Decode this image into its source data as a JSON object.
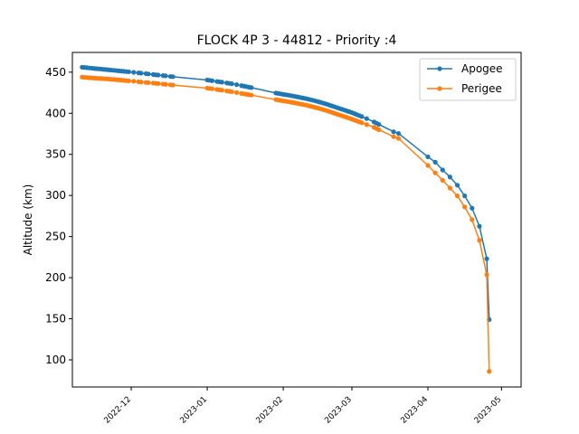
{
  "chart_data": {
    "type": "line",
    "title": "FLOCK 4P 3 - 44812 - Priority :4",
    "xlabel": "",
    "ylabel": "Altitude (km)",
    "xlim": [
      "2022-11-07",
      "2023-05-09"
    ],
    "ylim": [
      67,
      474
    ],
    "yticks": [
      100,
      150,
      200,
      250,
      300,
      350,
      400,
      450
    ],
    "xticks": [
      "2022-12",
      "2023-01",
      "2023-02",
      "2023-03",
      "2023-04",
      "2023-05"
    ],
    "grid": false,
    "legend_position": "upper right",
    "series": [
      {
        "name": "Apogee",
        "color": "#1f77b4",
        "marker": "circle",
        "points": [
          [
            "2022-11-11",
            456
          ],
          [
            "2022-11-12",
            455.7
          ],
          [
            "2022-11-13",
            455.4
          ],
          [
            "2022-11-14",
            455.1
          ],
          [
            "2022-11-15",
            454.8
          ],
          [
            "2022-11-16",
            454.5
          ],
          [
            "2022-11-17",
            454.2
          ],
          [
            "2022-11-18",
            454.0
          ],
          [
            "2022-11-19",
            453.7
          ],
          [
            "2022-11-20",
            453.4
          ],
          [
            "2022-11-21",
            453.1
          ],
          [
            "2022-11-22",
            452.8
          ],
          [
            "2022-11-23",
            452.5
          ],
          [
            "2022-11-24",
            452.2
          ],
          [
            "2022-11-25",
            451.9
          ],
          [
            "2022-11-26",
            451.6
          ],
          [
            "2022-11-27",
            451.3
          ],
          [
            "2022-11-28",
            451.0
          ],
          [
            "2022-11-29",
            450.7
          ],
          [
            "2022-11-30",
            450.4
          ],
          [
            "2022-12-02",
            449.8
          ],
          [
            "2022-12-04",
            449.1
          ],
          [
            "2022-12-05",
            448.8
          ],
          [
            "2022-12-07",
            448.2
          ],
          [
            "2022-12-08",
            447.8
          ],
          [
            "2022-12-10",
            447.2
          ],
          [
            "2022-12-11",
            446.8
          ],
          [
            "2022-12-12",
            446.5
          ],
          [
            "2022-12-14",
            445.8
          ],
          [
            "2022-12-15",
            445.5
          ],
          [
            "2022-12-17",
            444.8
          ],
          [
            "2022-12-18",
            444.5
          ],
          [
            "2023-01-01",
            440.5
          ],
          [
            "2023-01-02",
            440.1
          ],
          [
            "2023-01-03",
            439.6
          ],
          [
            "2023-01-05",
            438.7
          ],
          [
            "2023-01-06",
            438.2
          ],
          [
            "2023-01-07",
            437.8
          ],
          [
            "2023-01-09",
            436.9
          ],
          [
            "2023-01-10",
            436.4
          ],
          [
            "2023-01-11",
            435.9
          ],
          [
            "2023-01-13",
            434.8
          ],
          [
            "2023-01-15",
            433.6
          ],
          [
            "2023-01-16",
            433.0
          ],
          [
            "2023-01-17",
            432.4
          ],
          [
            "2023-01-18",
            431.8
          ],
          [
            "2023-01-19",
            431.2
          ],
          [
            "2023-01-29",
            424.6
          ],
          [
            "2023-01-30",
            424.1
          ],
          [
            "2023-01-31",
            423.6
          ],
          [
            "2023-02-01",
            423.0
          ],
          [
            "2023-02-02",
            422.6
          ],
          [
            "2023-02-03",
            422.1
          ],
          [
            "2023-02-04",
            421.5
          ],
          [
            "2023-02-05",
            421.0
          ],
          [
            "2023-02-06",
            420.4
          ],
          [
            "2023-02-07",
            419.8
          ],
          [
            "2023-02-08",
            419.2
          ],
          [
            "2023-02-09",
            418.6
          ],
          [
            "2023-02-10",
            418.0
          ],
          [
            "2023-02-11",
            417.3
          ],
          [
            "2023-02-12",
            416.6
          ],
          [
            "2023-02-13",
            415.9
          ],
          [
            "2023-02-14",
            415.1
          ],
          [
            "2023-02-15",
            414.3
          ],
          [
            "2023-02-16",
            413.5
          ],
          [
            "2023-02-17",
            412.6
          ],
          [
            "2023-02-18",
            411.7
          ],
          [
            "2023-02-19",
            410.8
          ],
          [
            "2023-02-20",
            409.8
          ],
          [
            "2023-02-21",
            408.8
          ],
          [
            "2023-02-22",
            407.8
          ],
          [
            "2023-02-23",
            406.8
          ],
          [
            "2023-02-24",
            405.8
          ],
          [
            "2023-02-25",
            404.8
          ],
          [
            "2023-02-26",
            403.8
          ],
          [
            "2023-02-27",
            402.8
          ],
          [
            "2023-02-28",
            401.8
          ],
          [
            "2023-03-01",
            400.8
          ],
          [
            "2023-03-02",
            399.6
          ],
          [
            "2023-03-03",
            398.4
          ],
          [
            "2023-03-04",
            397.2
          ],
          [
            "2023-03-05",
            396.0
          ],
          [
            "2023-03-07",
            393.5
          ],
          [
            "2023-03-10",
            389.5
          ],
          [
            "2023-03-11",
            388.0
          ],
          [
            "2023-03-12",
            386.5
          ],
          [
            "2023-03-18",
            377.5
          ],
          [
            "2023-03-20",
            375.5
          ],
          [
            "2023-04-01",
            347.0
          ],
          [
            "2023-04-04",
            340.5
          ],
          [
            "2023-04-07",
            331.0
          ],
          [
            "2023-04-10",
            322.5
          ],
          [
            "2023-04-13",
            312.5
          ],
          [
            "2023-04-16",
            299.5
          ],
          [
            "2023-04-19",
            284.5
          ],
          [
            "2023-04-22",
            262.5
          ],
          [
            "2023-04-25",
            223.0
          ],
          [
            "2023-04-26",
            149.0
          ]
        ]
      },
      {
        "name": "Perigee",
        "color": "#ff7f0e",
        "marker": "circle",
        "points": [
          [
            "2022-11-11",
            444.0
          ],
          [
            "2022-11-12",
            443.7
          ],
          [
            "2022-11-13",
            443.5
          ],
          [
            "2022-11-14",
            443.2
          ],
          [
            "2022-11-15",
            443.0
          ],
          [
            "2022-11-16",
            442.8
          ],
          [
            "2022-11-17",
            442.6
          ],
          [
            "2022-11-18",
            442.4
          ],
          [
            "2022-11-19",
            442.2
          ],
          [
            "2022-11-20",
            442.0
          ],
          [
            "2022-11-21",
            441.8
          ],
          [
            "2022-11-22",
            441.6
          ],
          [
            "2022-11-23",
            441.3
          ],
          [
            "2022-11-24",
            441.1
          ],
          [
            "2022-11-25",
            440.8
          ],
          [
            "2022-11-26",
            440.5
          ],
          [
            "2022-11-27",
            440.3
          ],
          [
            "2022-11-28",
            440.0
          ],
          [
            "2022-11-29",
            439.7
          ],
          [
            "2022-11-30",
            439.4
          ],
          [
            "2022-12-02",
            438.9
          ],
          [
            "2022-12-04",
            438.3
          ],
          [
            "2022-12-05",
            438.0
          ],
          [
            "2022-12-07",
            437.5
          ],
          [
            "2022-12-08",
            437.2
          ],
          [
            "2022-12-10",
            436.7
          ],
          [
            "2022-12-11",
            436.4
          ],
          [
            "2022-12-12",
            436.1
          ],
          [
            "2022-12-14",
            435.5
          ],
          [
            "2022-12-15",
            435.2
          ],
          [
            "2022-12-17",
            434.6
          ],
          [
            "2022-12-18",
            434.3
          ],
          [
            "2023-01-01",
            430.6
          ],
          [
            "2023-01-02",
            430.2
          ],
          [
            "2023-01-03",
            429.8
          ],
          [
            "2023-01-05",
            428.9
          ],
          [
            "2023-01-06",
            428.5
          ],
          [
            "2023-01-07",
            428.1
          ],
          [
            "2023-01-09",
            427.2
          ],
          [
            "2023-01-10",
            426.7
          ],
          [
            "2023-01-11",
            426.2
          ],
          [
            "2023-01-13",
            425.2
          ],
          [
            "2023-01-15",
            424.1
          ],
          [
            "2023-01-16",
            423.6
          ],
          [
            "2023-01-17",
            423.1
          ],
          [
            "2023-01-18",
            422.6
          ],
          [
            "2023-01-19",
            422.1
          ],
          [
            "2023-01-29",
            416.6
          ],
          [
            "2023-01-30",
            416.1
          ],
          [
            "2023-01-31",
            415.6
          ],
          [
            "2023-02-01",
            415.1
          ],
          [
            "2023-02-02",
            414.6
          ],
          [
            "2023-02-03",
            414.1
          ],
          [
            "2023-02-04",
            413.6
          ],
          [
            "2023-02-05",
            413.1
          ],
          [
            "2023-02-06",
            412.5
          ],
          [
            "2023-02-07",
            411.9
          ],
          [
            "2023-02-08",
            411.3
          ],
          [
            "2023-02-09",
            410.7
          ],
          [
            "2023-02-10",
            410.1
          ],
          [
            "2023-02-11",
            409.4
          ],
          [
            "2023-02-12",
            408.7
          ],
          [
            "2023-02-13",
            408.0
          ],
          [
            "2023-02-14",
            407.2
          ],
          [
            "2023-02-15",
            406.4
          ],
          [
            "2023-02-16",
            405.6
          ],
          [
            "2023-02-17",
            404.7
          ],
          [
            "2023-02-18",
            403.8
          ],
          [
            "2023-02-19",
            402.9
          ],
          [
            "2023-02-20",
            401.9
          ],
          [
            "2023-02-21",
            400.9
          ],
          [
            "2023-02-22",
            399.9
          ],
          [
            "2023-02-23",
            398.9
          ],
          [
            "2023-02-24",
            397.9
          ],
          [
            "2023-02-25",
            396.9
          ],
          [
            "2023-02-26",
            395.9
          ],
          [
            "2023-02-27",
            394.9
          ],
          [
            "2023-02-28",
            393.9
          ],
          [
            "2023-03-01",
            392.9
          ],
          [
            "2023-03-02",
            391.8
          ],
          [
            "2023-03-03",
            390.7
          ],
          [
            "2023-03-04",
            389.6
          ],
          [
            "2023-03-05",
            388.5
          ],
          [
            "2023-03-07",
            386.3
          ],
          [
            "2023-03-10",
            383.0
          ],
          [
            "2023-03-11",
            381.5
          ],
          [
            "2023-03-12",
            380.0
          ],
          [
            "2023-03-18",
            371.5
          ],
          [
            "2023-03-20",
            369.5
          ],
          [
            "2023-04-01",
            336.5
          ],
          [
            "2023-04-04",
            327.5
          ],
          [
            "2023-04-07",
            318.5
          ],
          [
            "2023-04-10",
            309.0
          ],
          [
            "2023-04-13",
            299.5
          ],
          [
            "2023-04-16",
            286.0
          ],
          [
            "2023-04-19",
            270.5
          ],
          [
            "2023-04-22",
            245.5
          ],
          [
            "2023-04-25",
            203.5
          ],
          [
            "2023-04-26",
            86.0
          ]
        ]
      }
    ]
  }
}
